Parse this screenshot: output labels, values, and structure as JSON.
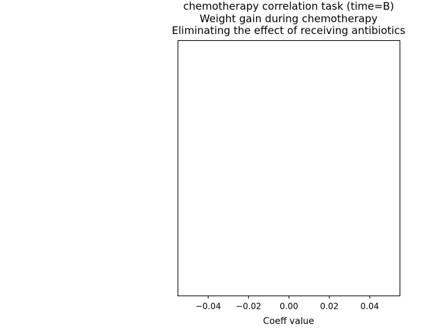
{
  "chart_data": {
    "type": "bar",
    "orientation": "horizontal",
    "title_lines": [
      "chemotherapy correlation task (time=B)",
      "Weight gain during chemotherapy",
      "Eliminating the effect of receiving antibiotics"
    ],
    "xlabel": "Coeff value",
    "ylabel": "",
    "xlim": [
      -0.055,
      0.055
    ],
    "xticks": [
      -0.04,
      -0.02,
      0.0,
      0.02,
      0.04
    ],
    "xtick_labels": [
      "−0.04",
      "−0.02",
      "0.00",
      "0.02",
      "0.04"
    ],
    "categories": [],
    "values": [],
    "grid": false
  }
}
